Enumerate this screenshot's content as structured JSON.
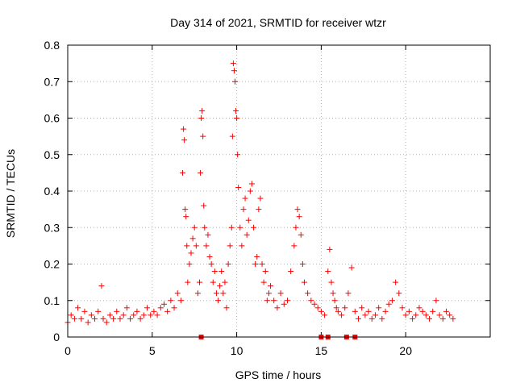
{
  "chart_data": {
    "type": "scatter",
    "title": "Day 314 of 2021, SRMTID for receiver wtzr",
    "xlabel": "GPS time / hours",
    "ylabel": "SRMTID / TECUs",
    "xlim": [
      0,
      25
    ],
    "ylim": [
      0,
      0.8
    ],
    "xticks": [
      0,
      5,
      10,
      15,
      20
    ],
    "yticks": [
      0,
      0.1,
      0.2,
      0.3,
      0.4,
      0.5,
      0.6,
      0.7,
      0.8
    ],
    "grid": true,
    "marker": "+",
    "color": "#ff0000",
    "series": [
      {
        "name": "SRMTID",
        "x": [
          0.0,
          0.2,
          0.4,
          0.6,
          0.8,
          1.0,
          1.2,
          1.4,
          1.6,
          1.8,
          2.0,
          2.1,
          2.3,
          2.5,
          2.7,
          2.9,
          3.1,
          3.3,
          3.5,
          3.7,
          3.9,
          4.1,
          4.3,
          4.5,
          4.7,
          4.9,
          5.1,
          5.3,
          5.5,
          5.7,
          5.9,
          6.1,
          6.3,
          6.5,
          6.7,
          6.8,
          6.85,
          6.9,
          6.95,
          7.0,
          7.05,
          7.1,
          7.2,
          7.3,
          7.4,
          7.5,
          7.6,
          7.7,
          7.8,
          7.85,
          7.9,
          7.95,
          8.0,
          8.05,
          8.1,
          8.2,
          8.3,
          8.4,
          8.5,
          8.6,
          8.7,
          8.8,
          8.9,
          9.0,
          9.1,
          9.2,
          9.3,
          9.4,
          9.5,
          9.6,
          9.7,
          9.75,
          9.8,
          9.85,
          9.9,
          9.95,
          10.0,
          10.05,
          10.1,
          10.2,
          10.3,
          10.4,
          10.5,
          10.6,
          10.7,
          10.8,
          10.9,
          11.0,
          11.1,
          11.2,
          11.3,
          11.4,
          11.5,
          11.6,
          11.7,
          11.8,
          11.9,
          12.0,
          12.2,
          12.4,
          12.6,
          12.8,
          13.0,
          13.2,
          13.4,
          13.5,
          13.6,
          13.7,
          13.8,
          13.9,
          14.0,
          14.2,
          14.4,
          14.6,
          14.8,
          15.0,
          15.2,
          15.4,
          15.5,
          15.6,
          15.7,
          15.8,
          15.9,
          16.0,
          16.2,
          16.4,
          16.6,
          16.8,
          17.0,
          17.2,
          17.4,
          17.6,
          17.8,
          18.0,
          18.2,
          18.4,
          18.6,
          18.8,
          19.0,
          19.2,
          19.4,
          19.6,
          19.8,
          20.0,
          20.2,
          20.4,
          20.6,
          20.8,
          21.0,
          21.2,
          21.4,
          21.6,
          21.8,
          22.0,
          22.2,
          22.4,
          22.6,
          22.8
        ],
        "y": [
          0.04,
          0.06,
          0.05,
          0.08,
          0.05,
          0.07,
          0.04,
          0.06,
          0.05,
          0.07,
          0.14,
          0.05,
          0.04,
          0.06,
          0.05,
          0.07,
          0.05,
          0.06,
          0.08,
          0.05,
          0.06,
          0.07,
          0.05,
          0.06,
          0.08,
          0.06,
          0.07,
          0.06,
          0.08,
          0.09,
          0.07,
          0.1,
          0.08,
          0.12,
          0.1,
          0.45,
          0.57,
          0.54,
          0.35,
          0.33,
          0.25,
          0.15,
          0.2,
          0.23,
          0.27,
          0.3,
          0.25,
          0.12,
          0.15,
          0.45,
          0.6,
          0.62,
          0.55,
          0.36,
          0.3,
          0.25,
          0.28,
          0.22,
          0.2,
          0.15,
          0.18,
          0.12,
          0.1,
          0.14,
          0.18,
          0.12,
          0.15,
          0.08,
          0.2,
          0.25,
          0.3,
          0.55,
          0.75,
          0.73,
          0.7,
          0.62,
          0.6,
          0.5,
          0.41,
          0.3,
          0.25,
          0.35,
          0.38,
          0.28,
          0.32,
          0.4,
          0.42,
          0.3,
          0.2,
          0.22,
          0.35,
          0.38,
          0.2,
          0.15,
          0.18,
          0.1,
          0.12,
          0.14,
          0.1,
          0.08,
          0.12,
          0.09,
          0.1,
          0.18,
          0.25,
          0.3,
          0.35,
          0.33,
          0.28,
          0.2,
          0.15,
          0.12,
          0.1,
          0.09,
          0.08,
          0.07,
          0.06,
          0.18,
          0.24,
          0.15,
          0.12,
          0.1,
          0.08,
          0.07,
          0.06,
          0.08,
          0.12,
          0.19,
          0.07,
          0.05,
          0.08,
          0.06,
          0.07,
          0.05,
          0.06,
          0.08,
          0.05,
          0.07,
          0.09,
          0.1,
          0.15,
          0.12,
          0.08,
          0.06,
          0.07,
          0.05,
          0.06,
          0.08,
          0.07,
          0.06,
          0.05,
          0.07,
          0.1,
          0.06,
          0.05,
          0.07,
          0.06,
          0.05
        ]
      }
    ],
    "gap_markers_x": [
      7.9,
      15.0,
      15.4,
      16.5,
      17.0
    ]
  }
}
